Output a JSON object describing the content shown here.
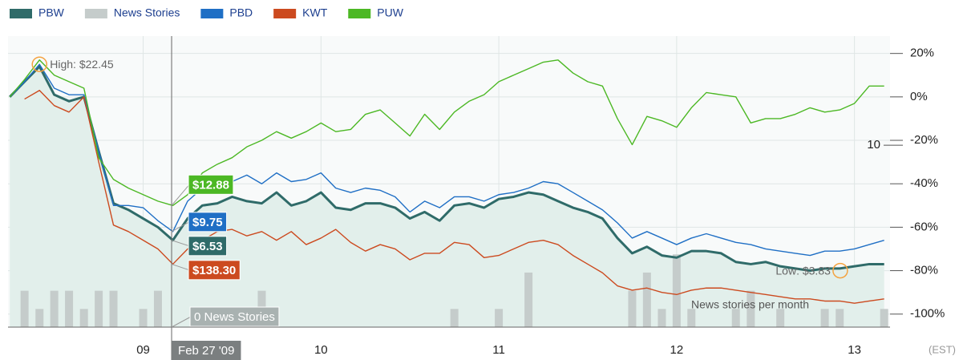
{
  "chart_data": {
    "type": "line",
    "x": [
      2008.25,
      2008.333,
      2008.417,
      2008.5,
      2008.583,
      2008.667,
      2008.75,
      2008.833,
      2008.917,
      2009,
      2009.083,
      2009.167,
      2009.25,
      2009.333,
      2009.417,
      2009.5,
      2009.583,
      2009.667,
      2009.75,
      2009.833,
      2009.917,
      2010,
      2010.083,
      2010.167,
      2010.25,
      2010.333,
      2010.417,
      2010.5,
      2010.583,
      2010.667,
      2010.75,
      2010.833,
      2010.917,
      2011,
      2011.083,
      2011.167,
      2011.25,
      2011.333,
      2011.417,
      2011.5,
      2011.583,
      2011.667,
      2011.75,
      2011.833,
      2011.917,
      2012,
      2012.083,
      2012.167,
      2012.25,
      2012.333,
      2012.417,
      2012.5,
      2012.583,
      2012.667,
      2012.75,
      2012.833,
      2012.917,
      2013,
      2013.083,
      2013.167
    ],
    "series": [
      {
        "name": "PBW",
        "color": "#2f6b69",
        "area": true,
        "cursor_label": "$6.53",
        "values": [
          0,
          7,
          14,
          1,
          -2,
          0,
          -25,
          -49,
          -52,
          -56,
          -60,
          -66,
          -56,
          -50,
          -49,
          -46,
          -48,
          -49,
          -44,
          -50,
          -48,
          -44,
          -51,
          -52,
          -49,
          -49,
          -51,
          -56,
          -53,
          -57,
          -50,
          -49,
          -51,
          -47,
          -46,
          -44,
          -45,
          -48,
          -51,
          -53,
          -56,
          -65,
          -72,
          -69,
          -73,
          -74,
          -71,
          -71,
          -72,
          -76,
          -77,
          -76,
          -78,
          -79,
          -80,
          -79,
          -79,
          -78,
          -77,
          -77
        ]
      },
      {
        "name": "News Stories",
        "color": "#c5cccb",
        "axis": "y2",
        "type": "bar",
        "values": [
          0,
          2,
          1,
          2,
          2,
          1,
          2,
          2,
          0,
          1,
          2,
          0,
          0,
          0,
          0,
          0,
          0,
          2,
          0,
          0,
          0,
          0,
          0,
          0,
          0,
          0,
          0,
          0,
          0,
          0,
          1,
          0,
          0,
          1,
          0,
          3,
          0,
          0,
          0,
          0,
          0,
          0,
          2,
          3,
          1,
          4,
          1,
          0,
          0,
          1,
          2,
          0,
          1,
          0,
          0,
          1,
          1,
          0,
          0,
          1
        ]
      },
      {
        "name": "PBD",
        "color": "#1f6fc5",
        "cursor_label": "$9.75",
        "values": [
          0,
          7,
          15,
          4,
          1,
          1,
          -25,
          -50,
          -50,
          -51,
          -57,
          -62,
          -48,
          -42,
          -38,
          -39,
          -36,
          -40,
          -35,
          -39,
          -38,
          -35,
          -42,
          -44,
          -42,
          -43,
          -46,
          -53,
          -48,
          -51,
          -46,
          -46,
          -48,
          -45,
          -44,
          -42,
          -39,
          -40,
          -44,
          -48,
          -52,
          -58,
          -65,
          -62,
          -65,
          -68,
          -65,
          -63,
          -65,
          -67,
          -68,
          -70,
          -71,
          -72,
          -73,
          -71,
          -71,
          -70,
          -68,
          -66
        ]
      },
      {
        "name": "KWT",
        "color": "#cc4a1f",
        "cursor_label": "$138.30",
        "values": [
          null,
          -1,
          3,
          -4,
          -7,
          0,
          -30,
          -59,
          -62,
          -66,
          -70,
          -77,
          -70,
          -66,
          -62,
          -61,
          -64,
          -62,
          -66,
          -62,
          -68,
          -65,
          -61,
          -67,
          -71,
          -68,
          -70,
          -75,
          -72,
          -72,
          -67,
          -68,
          -74,
          -73,
          -70,
          -67,
          -66,
          -68,
          -73,
          -77,
          -81,
          -87,
          -89,
          -88,
          -90,
          -91,
          -89,
          -88,
          -88,
          -89,
          -90,
          -91,
          -92,
          -93,
          -93,
          -94,
          -94,
          -95,
          -94,
          -93
        ]
      },
      {
        "name": "PUW",
        "color": "#4cb824",
        "cursor_label": "$12.88",
        "values": [
          0,
          8,
          17,
          10,
          7,
          4,
          -28,
          -38,
          -42,
          -45,
          -48,
          -50,
          -45,
          -35,
          -31,
          -28,
          -23,
          -20,
          -16,
          -19,
          -16,
          -12,
          -16,
          -15,
          -8,
          -6,
          -12,
          -18,
          -8,
          -15,
          -7,
          -2,
          1,
          7,
          10,
          13,
          16,
          17,
          11,
          7,
          5,
          -10,
          -22,
          -9,
          -11,
          -14,
          -5,
          2,
          1,
          0,
          -12,
          -10,
          -10,
          -8,
          -5,
          -7,
          -6,
          -3,
          5,
          5
        ]
      }
    ],
    "xlim": [
      2008.24,
      2013.2
    ],
    "xticks": [
      {
        "value": 2009,
        "label": "09"
      },
      {
        "value": 2010,
        "label": "10"
      },
      {
        "value": 2011,
        "label": "11"
      },
      {
        "value": 2012,
        "label": "12"
      },
      {
        "value": 2013,
        "label": "13"
      }
    ],
    "x_unit_label": "(EST)",
    "ylim": [
      -106,
      28
    ],
    "yticks": [
      {
        "value": 20,
        "label": "20%"
      },
      {
        "value": 0,
        "label": "0%"
      },
      {
        "value": -20,
        "label": "-20%"
      },
      {
        "value": -40,
        "label": "-40%"
      },
      {
        "value": -60,
        "label": "-60%"
      },
      {
        "value": -80,
        "label": "-80%"
      },
      {
        "value": -100,
        "label": "-100%"
      }
    ],
    "y2lim": [
      0,
      16
    ],
    "y2ticks": [
      10
    ],
    "y2_label": "News stories per month",
    "grid": true,
    "cursor": {
      "x": 2009.16,
      "label": "Feb 27 '09",
      "news_label": "0 News Stories"
    },
    "annotations": [
      {
        "text": "High: $22.45",
        "x": 2008.417,
        "y": 15,
        "side": "right"
      },
      {
        "text": "Low: $3.83",
        "x": 2012.92,
        "y": -80,
        "side": "left"
      }
    ]
  }
}
